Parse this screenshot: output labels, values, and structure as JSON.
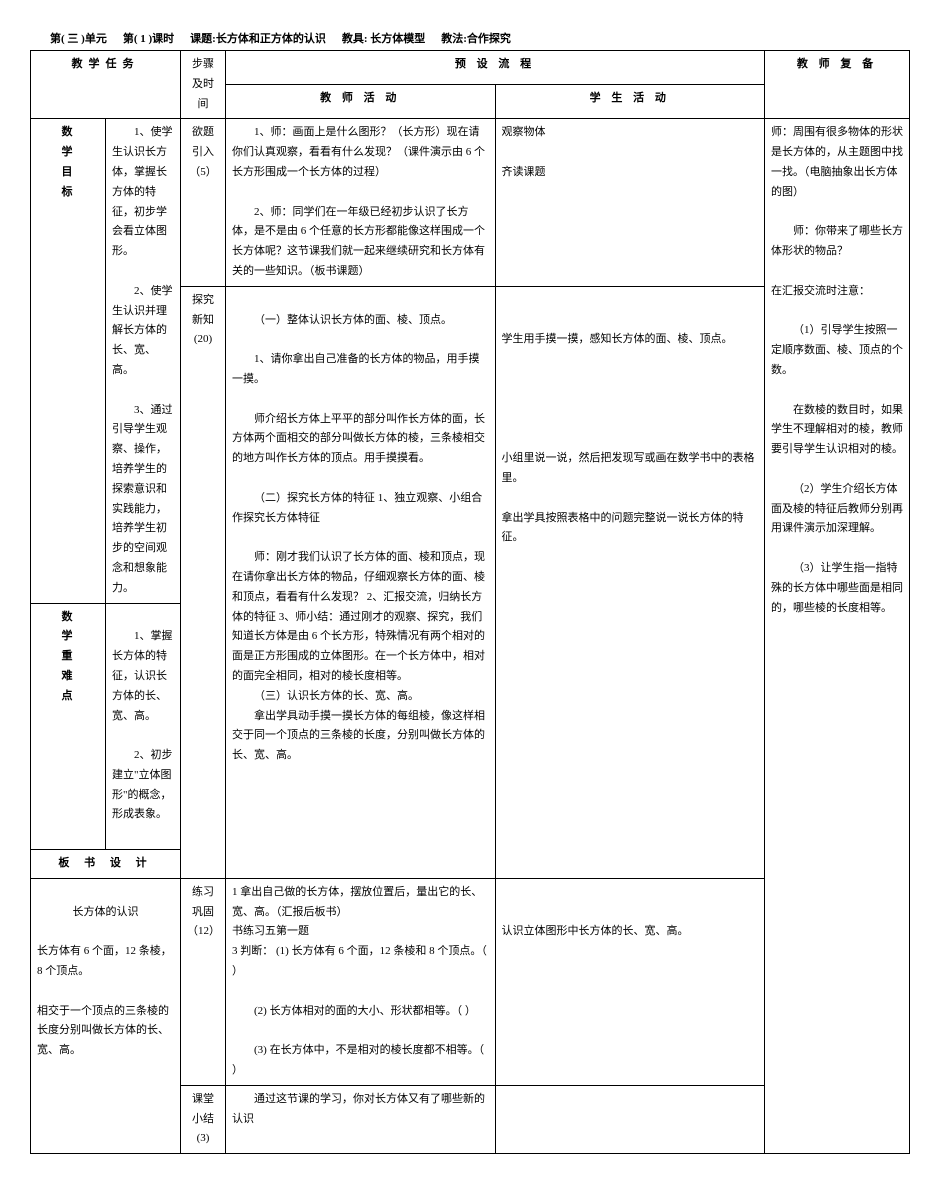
{
  "header": {
    "unit": "第( 三 )单元",
    "lesson_no": "第( 1 )课时",
    "topic": "课题:长方体和正方体的认识",
    "aids": "教具: 长方体模型",
    "method": "教法:合作探究"
  },
  "column_headers": {
    "task": "教学任务",
    "step_time": "步骤及时间",
    "process": "预 设 流 程",
    "teacher_activity": "教 师 活 动",
    "student_activity": "学 生 活 动",
    "teacher_prep": "教 师 复 备"
  },
  "vert_labels": {
    "goal": "数学目标",
    "keypoint": "数学重难点",
    "board": "板 书 设 计"
  },
  "task": {
    "goal1": "1、使学生认识长方体，掌握长方体的特征，初步学会看立体图形。",
    "goal2": "2、使学生认识并理解长方体的长、宽、高。",
    "goal3": "3、通过引导学生观察、操作，培养学生的探索意识和实践能力，培养学生初步的空间观念和想象能力。",
    "key1": "1、掌握长方体的特征，认识长方体的长、宽、高。",
    "key2": "2、初步建立\"立体图形\"的概念，形成表象。"
  },
  "board": {
    "title": "长方体的认识",
    "line1": "长方体有 6 个面，12 条棱，8 个顶点。",
    "line2": "相交于一个顶点的三条棱的长度分别叫做长方体的长、宽、高。"
  },
  "steps": {
    "s1": "欲题引入（5）",
    "s2": "探究新知(20)",
    "s3": "练习巩固（12）",
    "s4": "课堂小结(3)"
  },
  "teacher": {
    "t1_p1": "1、师：画面上是什么图形？（长方形）现在请你们认真观察，看看有什么发现？（课件演示由 6 个长方形围成一个长方体的过程）",
    "t1_p2": "2、师：同学们在一年级已经初步认识了长方体，是不是由 6 个任意的长方形都能像这样围成一个长方体呢？这节课我们就一起来继续研究和长方体有关的一些知识。（板书课题）",
    "t2_p1": "（一）整体认识长方体的面、棱、顶点。",
    "t2_p2": "1、请你拿出自己准备的长方体的物品，用手摸一摸。",
    "t2_p3": "师介绍长方体上平平的部分叫作长方体的面，长方体两个面相交的部分叫做长方体的棱，三条棱相交的地方叫作长方体的顶点。用手摸摸看。",
    "t2_p4": "（二）探究长方体的特征 1、独立观察、小组合作探究长方体特征",
    "t2_p5": "师：刚才我们认识了长方体的面、棱和顶点，现在请你拿出长方体的物品，仔细观察长方体的面、棱和顶点，看看有什么发现？ 2、汇报交流，归纳长方体的特征 3、师小结：通过刚才的观察、探究，我们知道长方体是由 6 个长方形，特殊情况有两个相对的面是正方形围成的立体图形。在一个长方体中，相对的面完全相同，相对的棱长度相等。",
    "t2_p6": "（三）认识长方体的长、宽、高。",
    "t2_p7": "拿出学具动手摸一摸长方体的每组棱，像这样相交于同一个顶点的三条棱的长度，分别叫做长方体的长、宽、高。",
    "t3_p1": "1 拿出自己做的长方体，摆放位置后，量出它的长、宽、高。（汇报后板书）",
    "t3_p2": "书练习五第一题",
    "t3_p3": "3 判断： (1) 长方体有 6 个面，12 条棱和 8 个顶点。（  ）",
    "t3_p4": "(2) 长方体相对的面的大小、形状都相等。（  ）",
    "t3_p5": "(3) 在长方体中，不是相对的棱长度都不相等。（  ）",
    "t4_p1": "通过这节课的学习，你对长方体又有了哪些新的认识"
  },
  "student": {
    "s1_p1": "观察物体",
    "s1_p2": "齐读课题",
    "s2_p1": "学生用手摸一摸，感知长方体的面、棱、顶点。",
    "s2_p2": "小组里说一说，然后把发现写或画在数学书中的表格里。",
    "s2_p3": "拿出学具按照表格中的问题完整说一说长方体的特征。",
    "s3_p1": "认识立体图形中长方体的长、宽、高。"
  },
  "prep": {
    "p1": "师：周围有很多物体的形状是长方体的，从主题图中找一找。（电脑抽象出长方体的图）",
    "p2": "师：你带来了哪些长方体形状的物品？",
    "p3": "在汇报交流时注意：",
    "p4": "（1）引导学生按照一定顺序数面、棱、顶点的个数。",
    "p5": "在数棱的数目时，如果学生不理解相对的棱，教师要引导学生认识相对的棱。",
    "p6": "（2）学生介绍长方体面及棱的特征后教师分别再用课件演示加深理解。",
    "p7": "（3）让学生指一指特殊的长方体中哪些面是相同的，哪些棱的长度相等。"
  }
}
